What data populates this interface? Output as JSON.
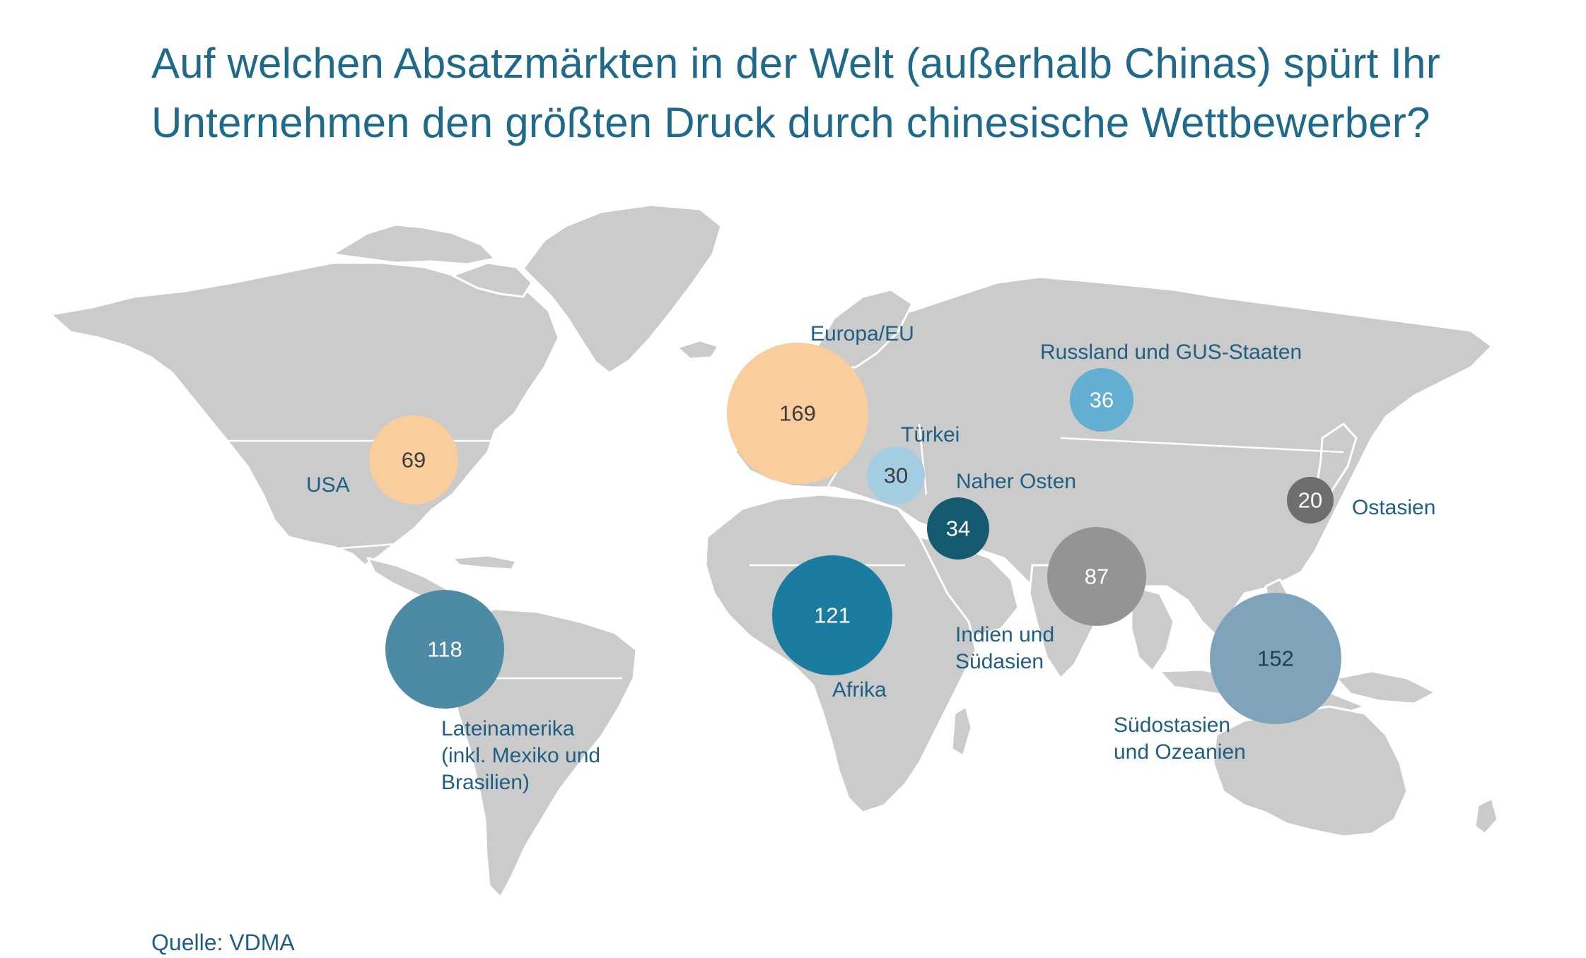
{
  "title": {
    "line1": "Auf welchen Absatzmärkten in der Welt (außerhalb Chinas) spürt Ihr",
    "line2": "Unternehmen den größten Druck durch chinesische Wettbewerber?"
  },
  "source": "Quelle: VDMA",
  "colors": {
    "title_text": "#1f6a8a",
    "label_text": "#1f5f82",
    "land": "#cbcbcb"
  },
  "regions": {
    "usa": {
      "label": "USA",
      "value": "69",
      "color": "#f9cd9c",
      "value_color": "#3d3d3d"
    },
    "europa": {
      "label": "Europa/EU",
      "value": "169",
      "color": "#f9cd9c",
      "value_color": "#3d3d3d"
    },
    "tuerkei": {
      "label": "Türkei",
      "value": "30",
      "color": "#a3cde3",
      "value_color": "#3d3d3d"
    },
    "naher_osten": {
      "label": "Naher Osten",
      "value": "34",
      "color": "#165a72",
      "value_color": "#ffffff"
    },
    "russland": {
      "label": "Russland und GUS-Staaten",
      "value": "36",
      "color": "#62afd2",
      "value_color": "#ffffff"
    },
    "ostasien": {
      "label": "Ostasien",
      "value": "20",
      "color": "#6e6e6e",
      "value_color": "#ffffff"
    },
    "indien": {
      "label_line1": "Indien und",
      "label_line2": "Südasien",
      "value": "87",
      "color": "#949494",
      "value_color": "#ffffff"
    },
    "suedostasien": {
      "label_line1": "Südostasien",
      "label_line2": "und Ozeanien",
      "value": "152",
      "color": "#7fa3bb",
      "value_color": "#1f3f55"
    },
    "afrika": {
      "label": "Afrika",
      "value": "121",
      "color": "#1a7ca1",
      "value_color": "#ffffff"
    },
    "lateinamerika": {
      "label_line1": "Lateinamerika",
      "label_line2": "(inkl. Mexiko und",
      "label_line3": "Brasilien)",
      "value": "118",
      "color": "#4c8aa6",
      "value_color": "#ffffff"
    }
  }
}
